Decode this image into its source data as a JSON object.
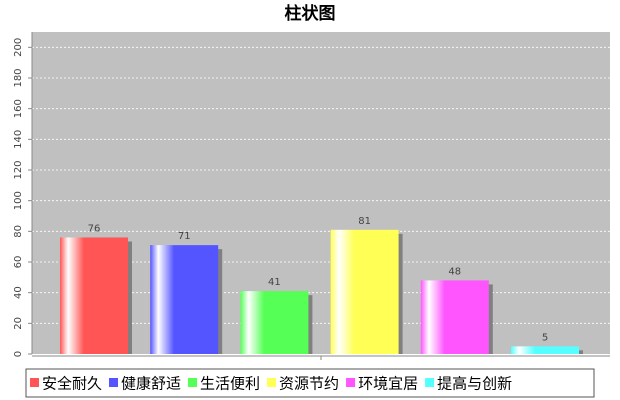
{
  "chart_data": {
    "type": "bar",
    "title": "柱状图",
    "categories": [
      "安全耐久",
      "健康舒适",
      "生活便利",
      "资源节约",
      "环境宜居",
      "提高与创新"
    ],
    "values": [
      76,
      71,
      41,
      81,
      48,
      5
    ],
    "colors": [
      "#ff5555",
      "#5555ff",
      "#55ff55",
      "#ffff55",
      "#ff55ff",
      "#55ffff"
    ],
    "ylim": [
      0,
      210
    ],
    "yticks": [
      0,
      20,
      40,
      60,
      80,
      100,
      120,
      140,
      160,
      180,
      200
    ],
    "grid": true,
    "legend": "bottom"
  }
}
